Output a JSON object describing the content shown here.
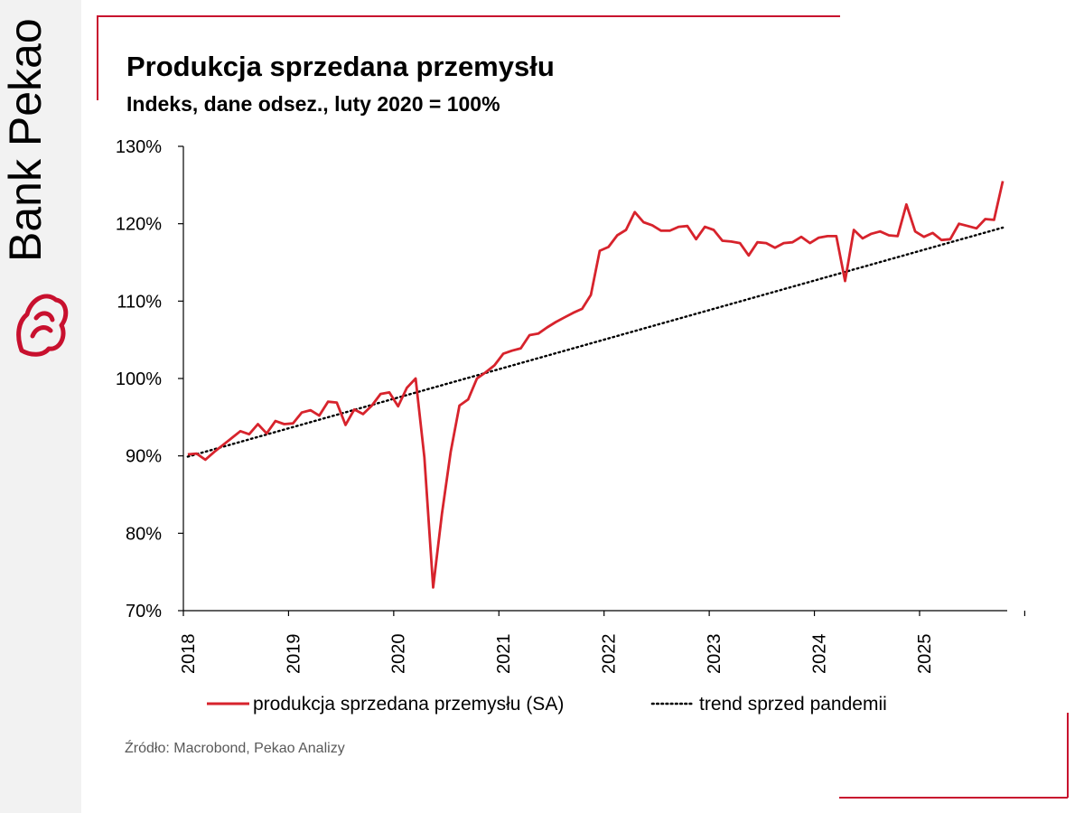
{
  "brand": {
    "name": "Bank Pekao"
  },
  "colors": {
    "accent": "#c8102e",
    "series": "#d7232c",
    "trend": "#000000",
    "axis": "#000000",
    "panel": "#f2f2f2"
  },
  "title": "Produkcja sprzedana przemysłu",
  "subtitle": "Indeks, dane odsez., luty 2020 = 100%",
  "source": "Źródło: Macrobond, Pekao Analizy",
  "chart_data": {
    "type": "line",
    "title": "Produkcja sprzedana przemysłu",
    "subtitle": "Indeks, dane odsez., luty 2020 = 100%",
    "xlabel": "",
    "ylabel": "",
    "ylim": [
      70,
      130
    ],
    "y_ticks": [
      70,
      80,
      90,
      100,
      110,
      120,
      130
    ],
    "y_tick_labels": [
      "70%",
      "80%",
      "90%",
      "100%",
      "110%",
      "120%",
      "130%"
    ],
    "x_tick_labels": [
      "2018",
      "2019",
      "2020",
      "2021",
      "2022",
      "2023",
      "2024",
      "2025"
    ],
    "x_start": "2018-01",
    "legend_position": "bottom",
    "series": [
      {
        "name": "produkcja sprzedana przemysłu (SA)",
        "style": "solid",
        "color": "#d7232c",
        "values": [
          90.2,
          90.3,
          89.5,
          90.5,
          91.4,
          92.3,
          93.2,
          92.8,
          94.1,
          92.9,
          94.5,
          94.1,
          94.2,
          95.6,
          95.9,
          95.2,
          97.0,
          96.9,
          94.0,
          96.0,
          95.4,
          96.5,
          98.0,
          98.2,
          96.4,
          98.8,
          100.0,
          89.8,
          73.0,
          82.5,
          90.5,
          96.5,
          97.3,
          100.0,
          100.8,
          101.7,
          103.2,
          103.6,
          103.9,
          105.6,
          105.8,
          106.6,
          107.3,
          107.9,
          108.5,
          109.0,
          110.8,
          116.5,
          117.0,
          118.5,
          119.2,
          121.5,
          120.2,
          119.8,
          119.1,
          119.1,
          119.6,
          119.7,
          118.0,
          119.6,
          119.2,
          117.8,
          117.7,
          117.5,
          115.9,
          117.6,
          117.5,
          116.9,
          117.5,
          117.6,
          118.3,
          117.5,
          118.2,
          118.4,
          118.4,
          112.6,
          119.2,
          118.1,
          118.7,
          119.0,
          118.5,
          118.4,
          122.5,
          119.0,
          118.3,
          118.8,
          117.9,
          118.0,
          120.0,
          119.7,
          119.4,
          120.6,
          120.5,
          125.5
        ]
      },
      {
        "name": "trend sprzed pandemii",
        "style": "dotted",
        "color": "#000000",
        "start_value": 89.9,
        "end_value": 119.5
      }
    ]
  }
}
